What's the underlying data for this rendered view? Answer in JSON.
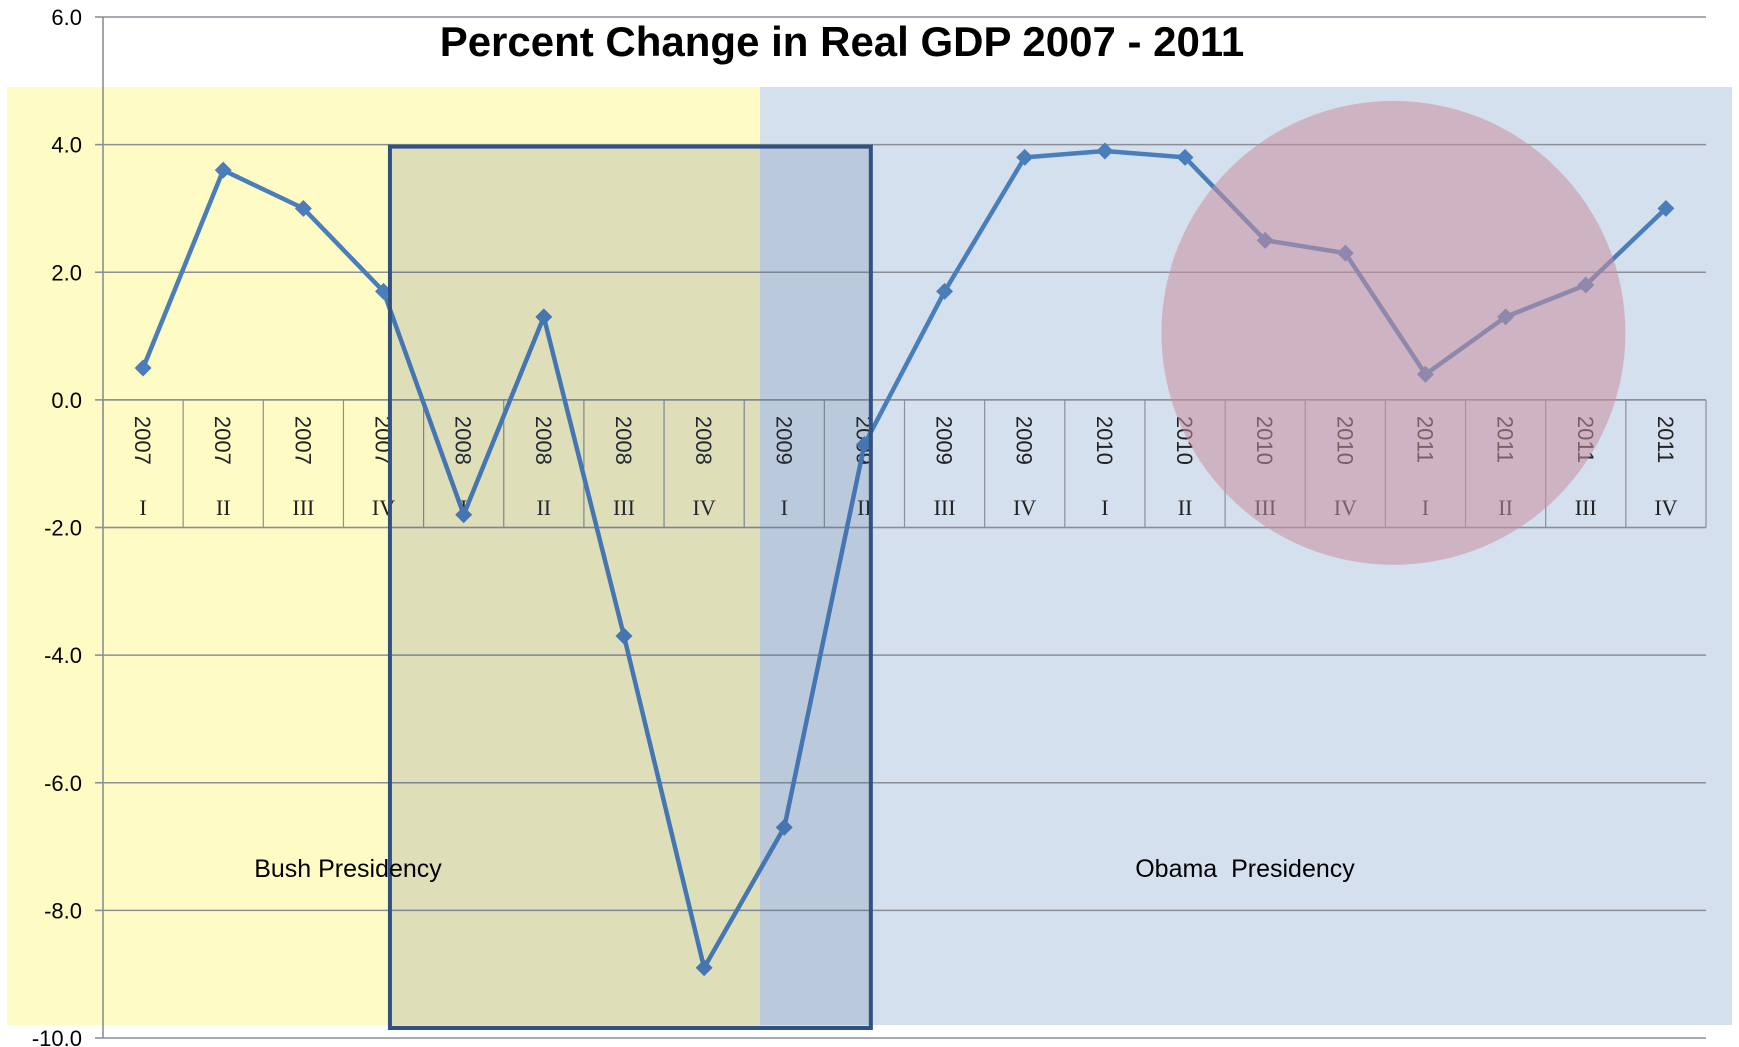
{
  "chart_data": {
    "type": "line",
    "title": "Percent Change in Real GDP 2007 - 2011",
    "xlabel": "",
    "ylabel": "",
    "ylim": [
      -10,
      6
    ],
    "yticks": [
      "6.0",
      "4.0",
      "2.0",
      "0.0",
      "-2.0",
      "-4.0",
      "-6.0",
      "-8.0",
      "-10.0"
    ],
    "grid": true,
    "categories": [
      {
        "year": "2007",
        "quarter": "I"
      },
      {
        "year": "2007",
        "quarter": "II"
      },
      {
        "year": "2007",
        "quarter": "III"
      },
      {
        "year": "2007",
        "quarter": "IV"
      },
      {
        "year": "2008",
        "quarter": "I"
      },
      {
        "year": "2008",
        "quarter": "II"
      },
      {
        "year": "2008",
        "quarter": "III"
      },
      {
        "year": "2008",
        "quarter": "IV"
      },
      {
        "year": "2009",
        "quarter": "I"
      },
      {
        "year": "2009",
        "quarter": "II"
      },
      {
        "year": "2009",
        "quarter": "III"
      },
      {
        "year": "2009",
        "quarter": "IV"
      },
      {
        "year": "2010",
        "quarter": "I"
      },
      {
        "year": "2010",
        "quarter": "II"
      },
      {
        "year": "2010",
        "quarter": "III"
      },
      {
        "year": "2010",
        "quarter": "IV"
      },
      {
        "year": "2011",
        "quarter": "I"
      },
      {
        "year": "2011",
        "quarter": "II"
      },
      {
        "year": "2011",
        "quarter": "III"
      },
      {
        "year": "2011",
        "quarter": "IV"
      }
    ],
    "series": [
      {
        "values": [
          0.5,
          3.6,
          3.0,
          1.7,
          -1.8,
          1.3,
          -3.7,
          -8.9,
          -6.7,
          -0.7,
          1.7,
          3.8,
          3.9,
          3.8,
          2.5,
          2.3,
          0.4,
          1.3,
          1.8,
          3.0
        ],
        "color": "#4a7ebb"
      }
    ],
    "regions": [
      {
        "label": "Bush Presidency",
        "color": "#fffbc4"
      },
      {
        "label": "Obama  Presidency",
        "color": "#d5e0ee"
      }
    ],
    "highlight_box_color": "#2f5282",
    "highlight_circle_color": "#c890a0"
  }
}
